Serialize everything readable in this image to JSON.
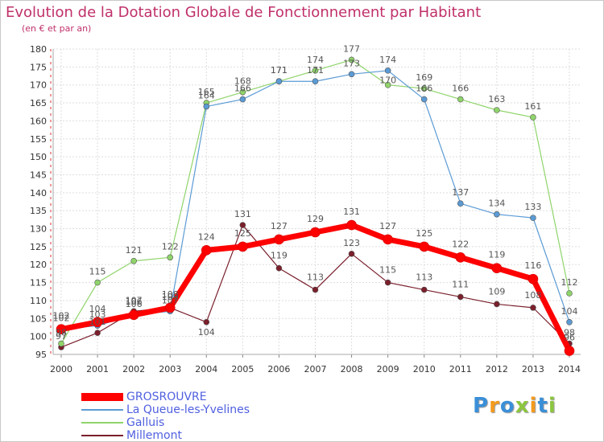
{
  "chart_data": {
    "type": "line",
    "title": "Evolution de la Dotation Globale de Fonctionnement par Habitant",
    "subtitle": "(en € et par an)",
    "x": [
      "2000",
      "2001",
      "2002",
      "2003",
      "2004",
      "2005",
      "2006",
      "2007",
      "2008",
      "2009",
      "2010",
      "2011",
      "2012",
      "2013",
      "2014"
    ],
    "ylim": [
      95,
      180
    ],
    "yticks": [
      95,
      100,
      105,
      110,
      115,
      120,
      125,
      130,
      135,
      140,
      145,
      150,
      155,
      160,
      165,
      170,
      175,
      180
    ],
    "grid": true,
    "legend_position": "bottom-left",
    "series": [
      {
        "name": "GROSROUVRE",
        "color": "#ff0000",
        "values": [
          102,
          104,
          106,
          108,
          124,
          125,
          127,
          129,
          131,
          127,
          125,
          122,
          119,
          116,
          96
        ]
      },
      {
        "name": "La Queue-les-Yvelines",
        "color": "#5b9bd5",
        "values": [
          102,
          103,
          106,
          107,
          164,
          166,
          171,
          171,
          173,
          174,
          166,
          137,
          134,
          133,
          104
        ]
      },
      {
        "name": "Galluis",
        "color": "#8fd46a",
        "values": [
          98,
          115,
          121,
          122,
          165,
          168,
          171,
          174,
          177,
          170,
          169,
          166,
          163,
          161,
          112
        ]
      },
      {
        "name": "Millemont",
        "color": "#7a1f2b",
        "values": [
          97,
          101,
          107,
          108,
          104,
          131,
          119,
          113,
          123,
          115,
          113,
          111,
          109,
          108,
          98
        ]
      }
    ]
  },
  "logo": {
    "letters": [
      {
        "ch": "P",
        "color": "#3a8fd8"
      },
      {
        "ch": "r",
        "color": "#f39a1e"
      },
      {
        "ch": "o",
        "color": "#3a8fd8"
      },
      {
        "ch": "x",
        "color": "#8cc63f"
      },
      {
        "ch": "i",
        "color": "#f39a1e"
      },
      {
        "ch": "t",
        "color": "#3a8fd8"
      },
      {
        "ch": "i",
        "color": "#8cc63f"
      }
    ]
  }
}
